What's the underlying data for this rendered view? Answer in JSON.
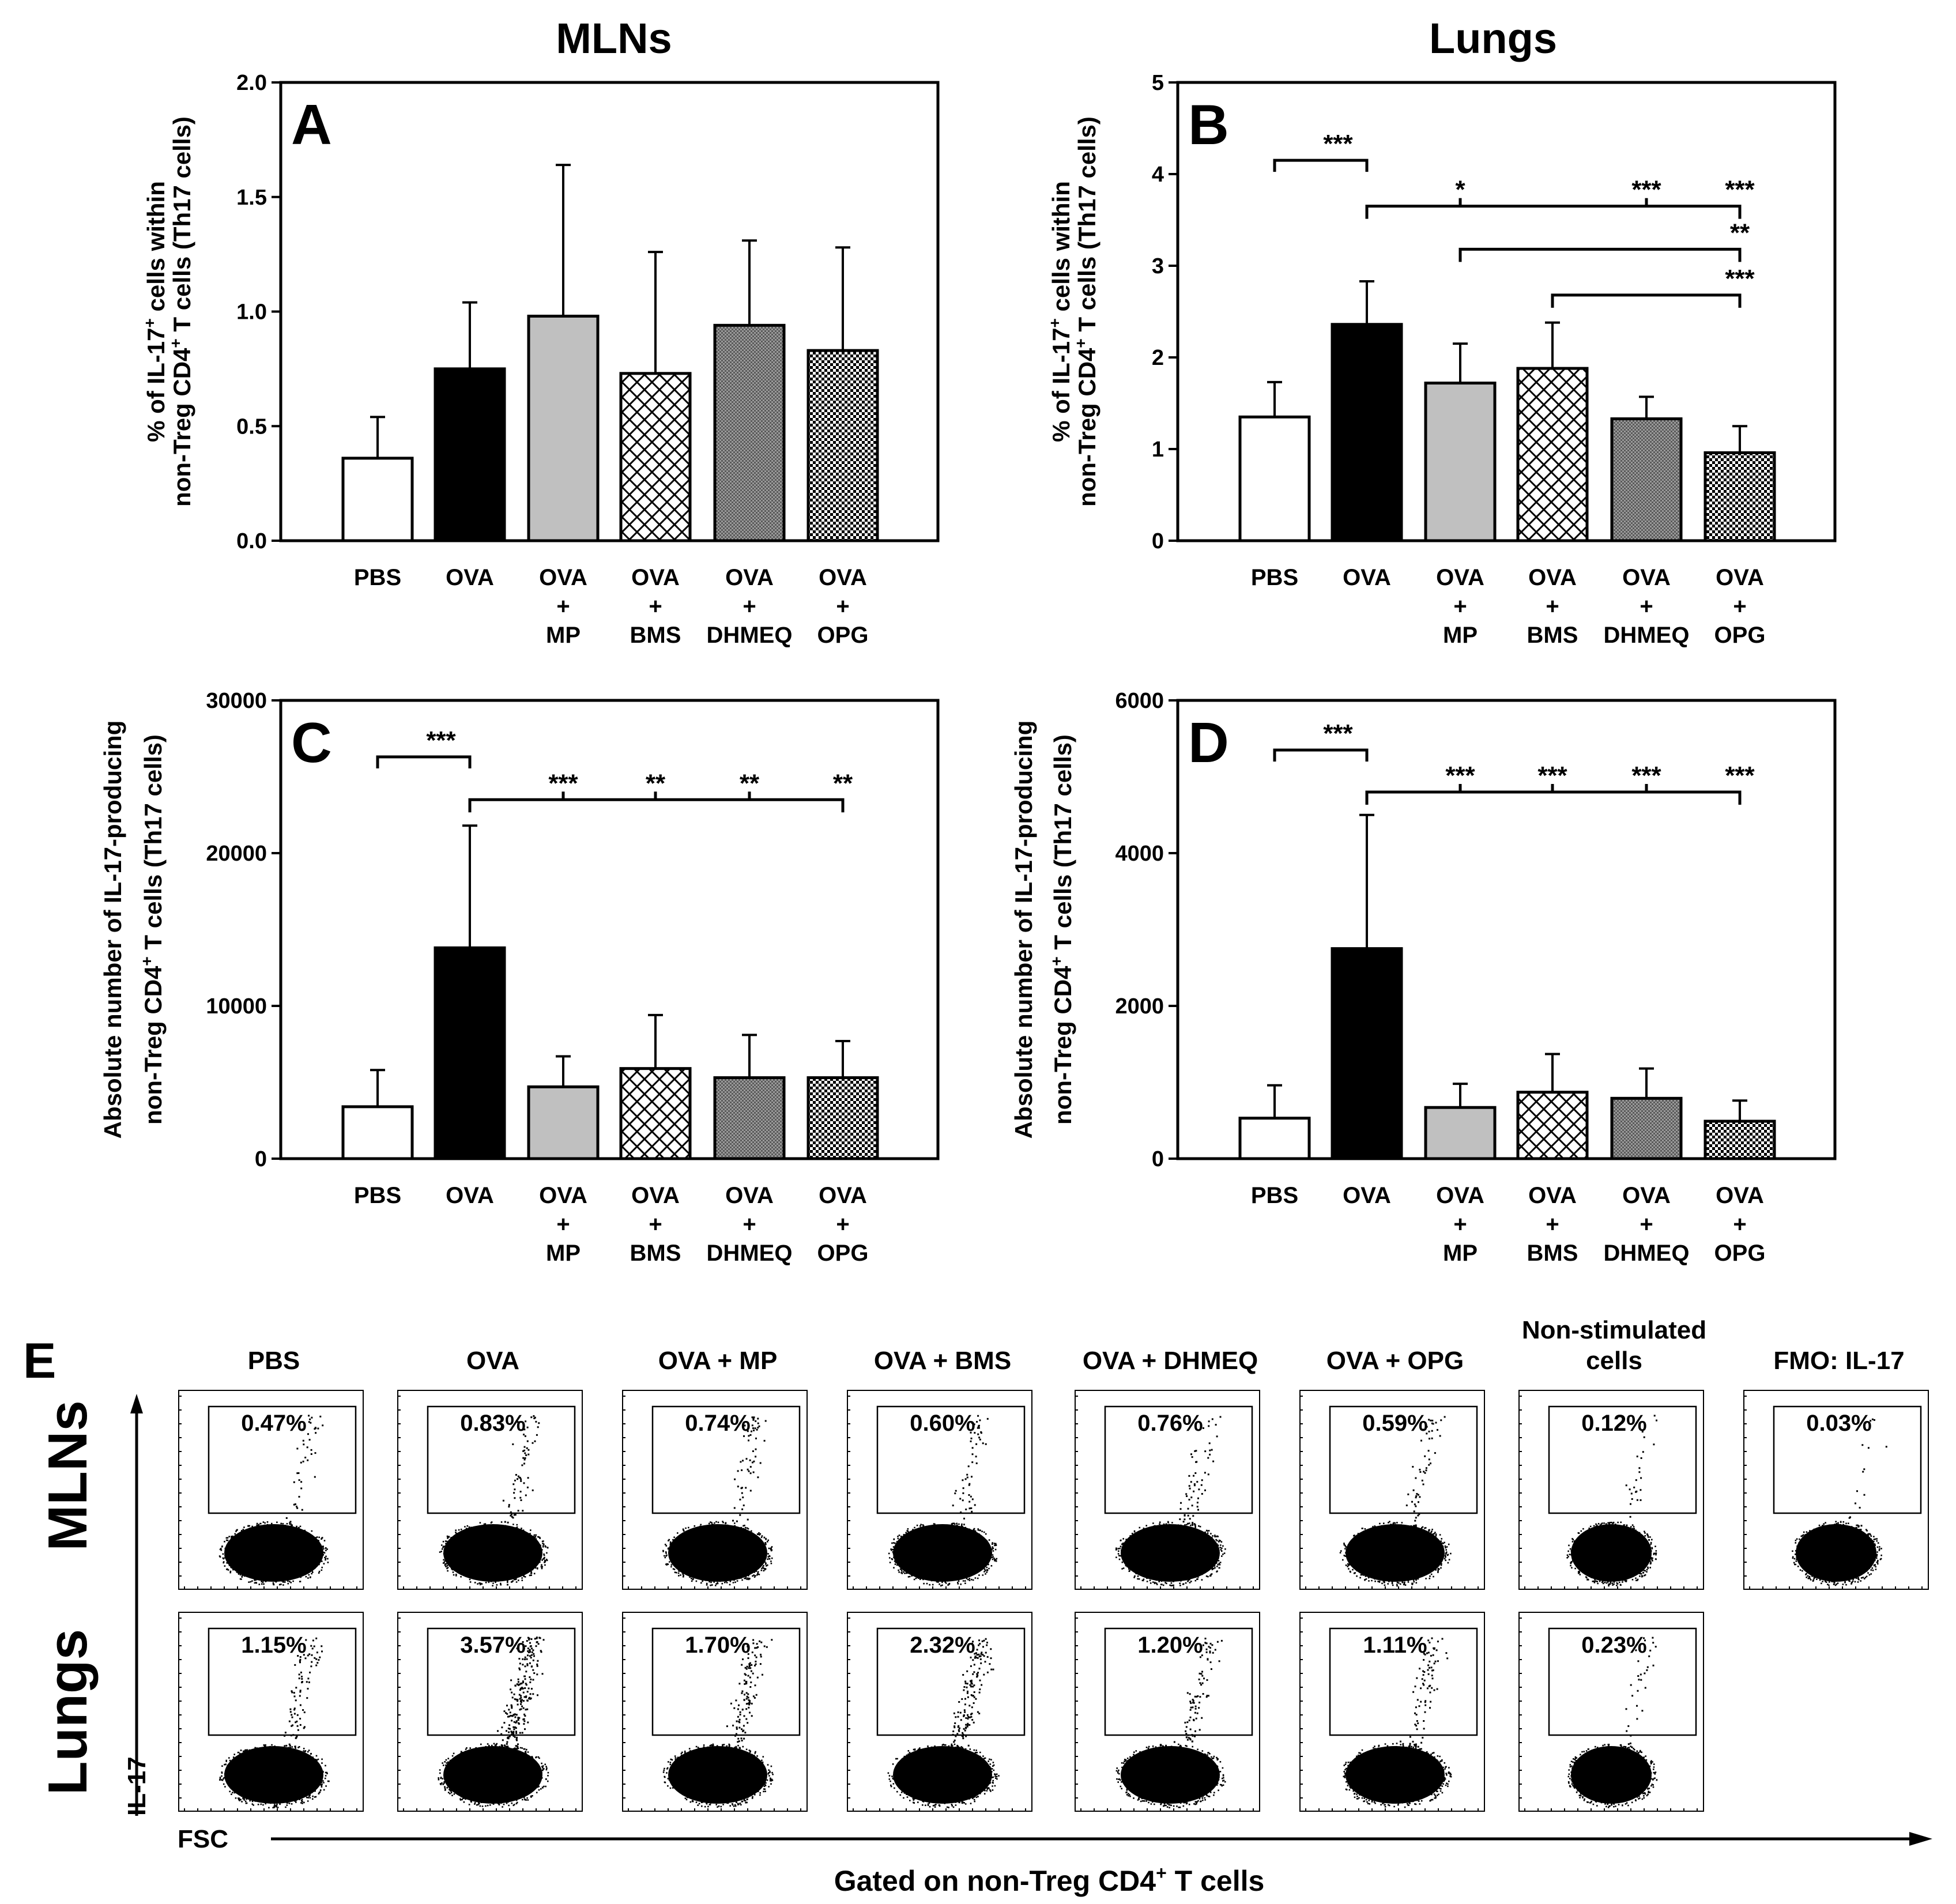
{
  "headers": {
    "mlns": "MLNs",
    "lungs": "Lungs"
  },
  "panel_e": {
    "letter": "E",
    "column_titles": [
      "PBS",
      "OVA",
      "OVA + MP",
      "OVA + BMS",
      "OVA + DHMEQ",
      "OVA + OPG",
      "Non-stimulated cells",
      "FMO: IL-17"
    ],
    "row_labels": [
      "MLNs",
      "Lungs"
    ],
    "y_axis": "IL-17",
    "x_axis": "FSC",
    "caption": "Gated on non-Treg CD4+ T cells",
    "caption_main": "Gated on non-Treg CD4",
    "caption_sup": "+",
    "caption_tail": " T cells",
    "mlns_pct": [
      "0.47%",
      "0.83%",
      "0.74%",
      "0.60%",
      "0.76%",
      "0.59%",
      "0.12%",
      "0.03%"
    ],
    "lungs_pct": [
      "1.15%",
      "3.57%",
      "1.70%",
      "2.32%",
      "1.20%",
      "1.11%",
      "0.23%"
    ]
  },
  "colors": {
    "open": "#ffffff",
    "ova": "#000000",
    "mp": "#c0c0c0",
    "stroke": "#000000"
  },
  "chart_data": [
    {
      "id": "A",
      "type": "bar",
      "letter": "A",
      "title": "MLNs",
      "ylabel": "% of IL-17+ cells within non-Treg CD4+ T cells (Th17 cells)",
      "ylabel_lines": [
        [
          "% of IL-17",
          "+",
          " cells within"
        ],
        [
          "non-Treg CD4",
          "+",
          " T cells (Th17 cells)"
        ]
      ],
      "categories": [
        [
          "PBS"
        ],
        [
          "OVA"
        ],
        [
          "OVA",
          "+",
          "MP"
        ],
        [
          "OVA",
          "+",
          "BMS"
        ],
        [
          "OVA",
          "+",
          "DHMEQ"
        ],
        [
          "OVA",
          "+",
          "OPG"
        ]
      ],
      "values": [
        0.36,
        0.75,
        0.98,
        0.73,
        0.94,
        0.83
      ],
      "errors": [
        0.18,
        0.29,
        0.66,
        0.53,
        0.37,
        0.45
      ],
      "fills": [
        "open",
        "black",
        "gray",
        "cross",
        "dense",
        "check"
      ],
      "ylim": [
        0,
        2.0
      ],
      "ticks": [
        "0.0",
        "0.5",
        "1.0",
        "1.5",
        "2.0"
      ],
      "tick_values": [
        0,
        0.5,
        1.0,
        1.5,
        2.0
      ],
      "annotations": []
    },
    {
      "id": "B",
      "type": "bar",
      "letter": "B",
      "title": "Lungs",
      "ylabel": "% of IL-17+ cells within non-Treg CD4+ T cells (Th17 cells)",
      "ylabel_lines": [
        [
          "% of IL-17",
          "+",
          " cells within"
        ],
        [
          "non-Treg CD4",
          "+",
          " T cells (Th17 cells)"
        ]
      ],
      "categories": [
        [
          "PBS"
        ],
        [
          "OVA"
        ],
        [
          "OVA",
          "+",
          "MP"
        ],
        [
          "OVA",
          "+",
          "BMS"
        ],
        [
          "OVA",
          "+",
          "DHMEQ"
        ],
        [
          "OVA",
          "+",
          "OPG"
        ]
      ],
      "values": [
        1.35,
        2.36,
        1.72,
        1.88,
        1.33,
        0.96
      ],
      "errors": [
        0.38,
        0.47,
        0.43,
        0.5,
        0.24,
        0.29
      ],
      "fills": [
        "open",
        "black",
        "gray",
        "cross",
        "dense",
        "check"
      ],
      "ylim": [
        0,
        5
      ],
      "ticks": [
        "0",
        "1",
        "2",
        "3",
        "4",
        "5"
      ],
      "tick_values": [
        0,
        1,
        2,
        3,
        4,
        5
      ],
      "annotations": [
        {
          "kind": "bracket",
          "from": 0,
          "to": 1,
          "level": 4.15,
          "label": "***"
        },
        {
          "kind": "ref",
          "from": 1,
          "targets": [
            2,
            4,
            5
          ],
          "level": 3.65,
          "labels": [
            "*",
            "***",
            "***"
          ]
        },
        {
          "kind": "ref",
          "from": 2,
          "targets": [
            5
          ],
          "level": 3.18,
          "labels": [
            "**"
          ]
        },
        {
          "kind": "ref",
          "from": 3,
          "targets": [
            5
          ],
          "level": 2.68,
          "labels": [
            "***"
          ]
        }
      ]
    },
    {
      "id": "C",
      "type": "bar",
      "letter": "C",
      "ylabel": "Absolute number of IL-17-producing non-Treg CD4+ T cells (Th17 cells)",
      "ylabel_lines": [
        [
          "Absolute number of IL-17-producing"
        ],
        [
          "non-Treg CD4",
          "+",
          " T cells (Th17 cells)"
        ]
      ],
      "categories": [
        [
          "PBS"
        ],
        [
          "OVA"
        ],
        [
          "OVA",
          "+",
          "MP"
        ],
        [
          "OVA",
          "+",
          "BMS"
        ],
        [
          "OVA",
          "+",
          "DHMEQ"
        ],
        [
          "OVA",
          "+",
          "OPG"
        ]
      ],
      "values": [
        3400,
        13800,
        4700,
        5900,
        5300,
        5300
      ],
      "errors": [
        2400,
        8000,
        2000,
        3500,
        2800,
        2400
      ],
      "fills": [
        "open",
        "black",
        "gray",
        "cross",
        "dense",
        "check"
      ],
      "ylim": [
        0,
        30000
      ],
      "ticks": [
        "0",
        "10000",
        "20000",
        "30000"
      ],
      "tick_values": [
        0,
        10000,
        20000,
        30000
      ],
      "annotations": [
        {
          "kind": "bracket",
          "from": 0,
          "to": 1,
          "level": 26300,
          "label": "***"
        },
        {
          "kind": "ref",
          "from": 1,
          "targets": [
            2,
            3,
            4,
            5
          ],
          "level": 23500,
          "labels": [
            "***",
            "**",
            "**",
            "**"
          ]
        }
      ]
    },
    {
      "id": "D",
      "type": "bar",
      "letter": "D",
      "ylabel": "Absolute number of IL-17-producing non-Treg CD4+ T cells (Th17 cells)",
      "ylabel_lines": [
        [
          "Absolute number of IL-17-producing"
        ],
        [
          "non-Treg CD4",
          "+",
          " T cells (Th17 cells)"
        ]
      ],
      "categories": [
        [
          "PBS"
        ],
        [
          "OVA"
        ],
        [
          "OVA",
          "+",
          "MP"
        ],
        [
          "OVA",
          "+",
          "BMS"
        ],
        [
          "OVA",
          "+",
          "DHMEQ"
        ],
        [
          "OVA",
          "+",
          "OPG"
        ]
      ],
      "values": [
        530,
        2750,
        670,
        870,
        790,
        490
      ],
      "errors": [
        430,
        1750,
        310,
        500,
        390,
        270
      ],
      "fills": [
        "open",
        "black",
        "gray",
        "cross",
        "dense",
        "check"
      ],
      "ylim": [
        0,
        6000
      ],
      "ticks": [
        "0",
        "2000",
        "4000",
        "6000"
      ],
      "tick_values": [
        0,
        2000,
        4000,
        6000
      ],
      "annotations": [
        {
          "kind": "bracket",
          "from": 0,
          "to": 1,
          "level": 5350,
          "label": "***"
        },
        {
          "kind": "ref",
          "from": 1,
          "targets": [
            2,
            3,
            4,
            5
          ],
          "level": 4800,
          "labels": [
            "***",
            "***",
            "***",
            "***"
          ]
        }
      ]
    }
  ]
}
